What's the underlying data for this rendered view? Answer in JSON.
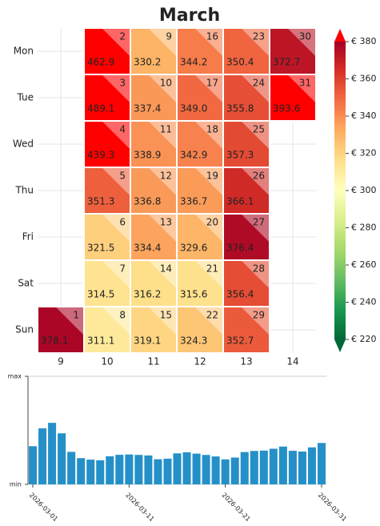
{
  "chart_data": [
    {
      "type": "calendar-heatmap",
      "title": "March",
      "rows": [
        "Mon",
        "Tue",
        "Wed",
        "Thu",
        "Fri",
        "Sat",
        "Sun"
      ],
      "columns": [
        9,
        10,
        11,
        12,
        13,
        14
      ],
      "days": [
        1,
        2,
        3,
        4,
        5,
        6,
        7,
        8,
        9,
        10,
        11,
        12,
        13,
        14,
        15,
        16,
        17,
        18,
        19,
        20,
        21,
        22,
        23,
        24,
        25,
        26,
        27,
        28,
        29,
        30,
        31
      ],
      "values": [
        378.1,
        462.9,
        489.1,
        439.3,
        351.3,
        321.5,
        314.5,
        311.1,
        330.2,
        337.4,
        338.9,
        336.8,
        334.4,
        316.2,
        319.1,
        344.2,
        349.0,
        342.9,
        336.7,
        329.6,
        315.6,
        324.3,
        350.4,
        355.8,
        357.3,
        366.1,
        376.4,
        356.4,
        352.7,
        372.7,
        393.6
      ],
      "value_labels": [
        "378.1",
        "462.9",
        "489.1",
        "439.3",
        "351.3",
        "321.5",
        "314.5",
        "311.1",
        "330.2",
        "337.4",
        "338.9",
        "336.8",
        "334.4",
        "316.2",
        "319.1",
        "344.2",
        "349.0",
        "342.9",
        "336.7",
        "329.6",
        "315.6",
        "324.3",
        "350.4",
        "355.8",
        "357.3",
        "366.1",
        "376.4",
        "356.4",
        "352.7",
        "372.7",
        "393.6"
      ],
      "colormap": [
        "#006837",
        "#1a9850",
        "#66bd63",
        "#a6d96a",
        "#d9ef8b",
        "#ffffbf",
        "#fee08b",
        "#fdae61",
        "#f46d43",
        "#d73027",
        "#a50026"
      ],
      "over_color": "#ff0000",
      "under_color": "#006837",
      "zlim": [
        220,
        380
      ],
      "zticks": [
        {
          "value": 220,
          "label": "€ 220"
        },
        {
          "value": 240,
          "label": "€ 240"
        },
        {
          "value": 260,
          "label": "€ 260"
        },
        {
          "value": 280,
          "label": "€ 280"
        },
        {
          "value": 300,
          "label": "€ 300"
        },
        {
          "value": 320,
          "label": "€ 320"
        },
        {
          "value": 340,
          "label": "€ 340"
        },
        {
          "value": 360,
          "label": "€ 360"
        },
        {
          "value": 380,
          "label": "€ 380"
        }
      ]
    },
    {
      "type": "bar",
      "color": "#2590c8",
      "categories": [
        "2026-03-01",
        null,
        null,
        null,
        null,
        null,
        null,
        null,
        null,
        null,
        "2026-03-11",
        null,
        null,
        null,
        null,
        null,
        null,
        null,
        null,
        null,
        "2026-03-21",
        null,
        null,
        null,
        null,
        null,
        null,
        null,
        null,
        null,
        "2026-03-31"
      ],
      "values": [
        378.1,
        462.9,
        489.1,
        439.3,
        351.3,
        321.5,
        314.5,
        311.1,
        330.2,
        337.4,
        338.9,
        336.8,
        334.4,
        316.2,
        319.1,
        344.2,
        349.0,
        342.9,
        336.7,
        329.6,
        315.6,
        324.3,
        350.4,
        355.8,
        357.3,
        366.1,
        376.4,
        356.4,
        352.7,
        372.7,
        393.6
      ],
      "ylim": [
        197,
        710
      ],
      "yticks": [
        {
          "value": 197,
          "label": "min"
        },
        {
          "value": 710,
          "label": "max"
        }
      ]
    }
  ]
}
